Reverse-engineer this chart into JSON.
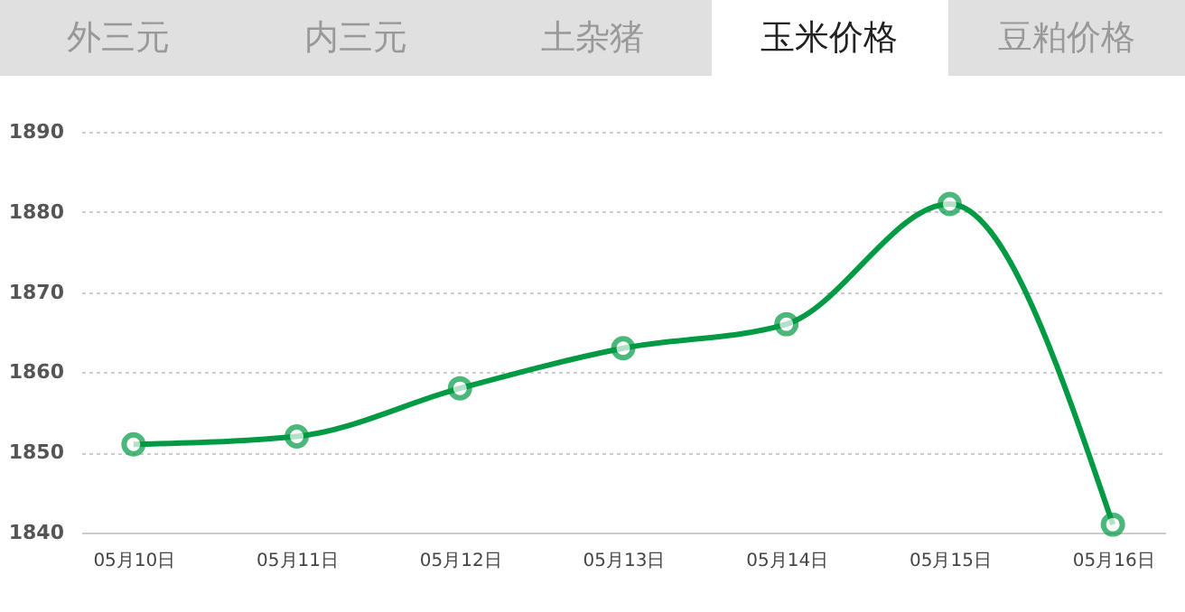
{
  "chart_data": {
    "type": "line",
    "title": "玉米价格",
    "annotations": [
      "外三元",
      "内三元",
      "土杂猪",
      "豆粕价格"
    ],
    "categories": [
      "05月10日",
      "05月11日",
      "05月12日",
      "05月13日",
      "05月14日",
      "05月15日",
      "05月16日"
    ],
    "series": [
      {
        "color": "#009a44",
        "values": [
          1851,
          1852,
          1858,
          1863,
          1866,
          1881,
          1841
        ]
      }
    ],
    "ylim": [
      1840,
      1890
    ],
    "yticks": [
      1840,
      1850,
      1860,
      1870,
      1880,
      1890
    ],
    "grid": "y",
    "marker": "circle",
    "line_style": "solid"
  }
}
